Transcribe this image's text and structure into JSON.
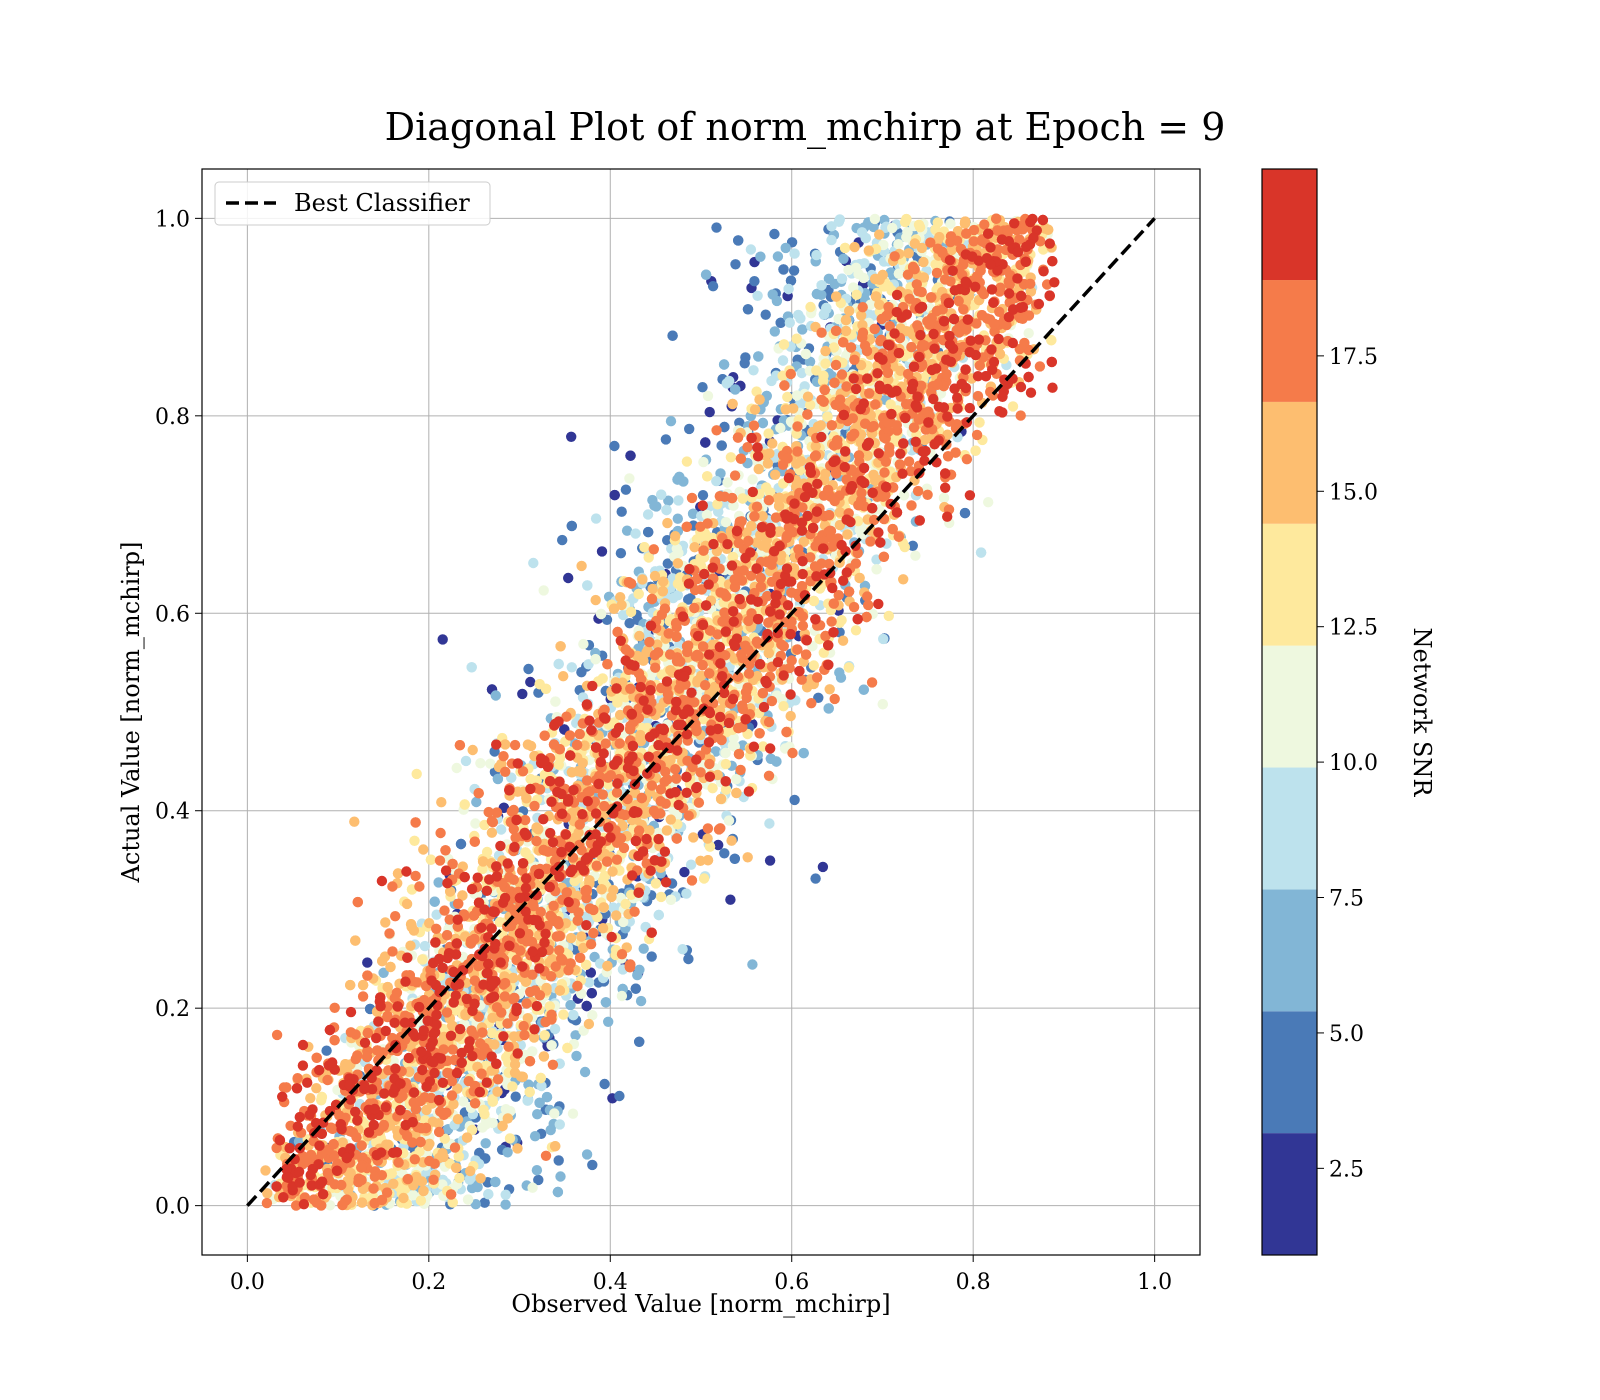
{
  "chart_data": {
    "type": "scatter",
    "title": "Diagonal Plot of norm_mchirp at Epoch = 9",
    "xlabel": "Observed Value [norm_mchirp]",
    "ylabel": "Actual Value [norm_mchirp]",
    "xlim": [
      -0.05,
      1.05
    ],
    "ylim": [
      -0.05,
      1.05
    ],
    "x_ticks": [
      "0.0",
      "0.2",
      "0.4",
      "0.6",
      "0.8",
      "1.0"
    ],
    "y_ticks": [
      "0.0",
      "0.2",
      "0.4",
      "0.6",
      "0.8",
      "1.0"
    ],
    "grid": true,
    "legend": {
      "position": "top-left",
      "entries": [
        {
          "name": "Best Classifier",
          "style": "dashed",
          "color": "#000000"
        }
      ]
    },
    "reference_line": {
      "name": "Best Classifier",
      "x": [
        0.0,
        1.0
      ],
      "y": [
        0.0,
        1.0
      ]
    },
    "colorbar": {
      "label": "Network SNR",
      "range": [
        0.9,
        20.95
      ],
      "bounds": [
        0.9,
        3.15,
        5.4,
        7.65,
        9.9,
        12.15,
        14.4,
        16.65,
        18.9,
        20.95
      ],
      "ticks": [
        "2.5",
        "5.0",
        "7.5",
        "10.0",
        "12.5",
        "15.0",
        "17.5"
      ],
      "tick_values": [
        2.5,
        5.0,
        7.5,
        10.0,
        12.5,
        15.0,
        17.5
      ],
      "colors": [
        "#313695",
        "#4a7ab7",
        "#82b6d6",
        "#bde2ed",
        "#eef8df",
        "#fee99d",
        "#fdbe70",
        "#f57b4a",
        "#d93529",
        "#a50026"
      ]
    },
    "point_cloud": {
      "description_of_density": "points concentrated along diagonal; high SNR near diagonal, low SNR far from it",
      "x_range": [
        0.03,
        0.88
      ],
      "y_range": [
        0.0,
        1.0
      ],
      "snr_range": [
        1.0,
        20.0
      ]
    }
  }
}
